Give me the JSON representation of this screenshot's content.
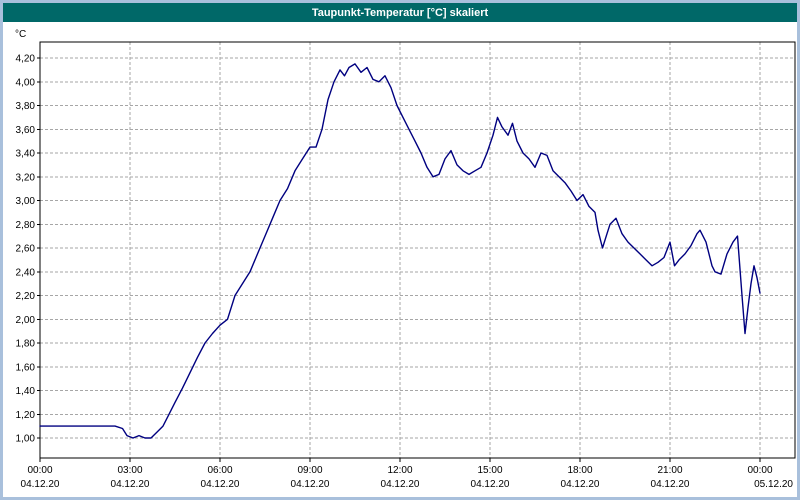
{
  "window": {
    "title": "Taupunkt-Temperatur [°C] skaliert"
  },
  "colors": {
    "title_bar": "#006868",
    "frame": "#A9C0DC",
    "plot_background": "#FFFFFF",
    "plot_border": "#000000",
    "grid": "#A6A6A6",
    "line": "#000080",
    "title_text": "#FFFFFF"
  },
  "chart_data": {
    "type": "line",
    "title": "Taupunkt-Temperatur [°C] skaliert",
    "xlabel": "",
    "ylabel": "°C",
    "ylim": [
      1.0,
      4.2
    ],
    "x_hours_range": [
      0,
      24
    ],
    "grid": true,
    "legend": false,
    "y_ticks": [
      {
        "value": 4.2,
        "label": "4,20"
      },
      {
        "value": 4.0,
        "label": "4,00"
      },
      {
        "value": 3.8,
        "label": "3,80"
      },
      {
        "value": 3.6,
        "label": "3,60"
      },
      {
        "value": 3.4,
        "label": "3,40"
      },
      {
        "value": 3.2,
        "label": "3,20"
      },
      {
        "value": 3.0,
        "label": "3,00"
      },
      {
        "value": 2.8,
        "label": "2,80"
      },
      {
        "value": 2.6,
        "label": "2,60"
      },
      {
        "value": 2.4,
        "label": "2,40"
      },
      {
        "value": 2.2,
        "label": "2,20"
      },
      {
        "value": 2.0,
        "label": "2,00"
      },
      {
        "value": 1.8,
        "label": "1,80"
      },
      {
        "value": 1.6,
        "label": "1,60"
      },
      {
        "value": 1.4,
        "label": "1,40"
      },
      {
        "value": 1.2,
        "label": "1,20"
      },
      {
        "value": 1.0,
        "label": "1,00"
      }
    ],
    "x_ticks": [
      {
        "hour": 0,
        "time": "00:00",
        "date": "04.12.20"
      },
      {
        "hour": 3,
        "time": "03:00",
        "date": "04.12.20"
      },
      {
        "hour": 6,
        "time": "06:00",
        "date": "04.12.20"
      },
      {
        "hour": 9,
        "time": "09:00",
        "date": "04.12.20"
      },
      {
        "hour": 12,
        "time": "12:00",
        "date": "04.12.20"
      },
      {
        "hour": 15,
        "time": "15:00",
        "date": "04.12.20"
      },
      {
        "hour": 18,
        "time": "18:00",
        "date": "04.12.20"
      },
      {
        "hour": 21,
        "time": "21:00",
        "date": "04.12.20"
      },
      {
        "hour": 24,
        "time": "00:00",
        "date": "05.12.20",
        "date_anchor": "end"
      }
    ],
    "series": [
      {
        "name": "Taupunkt-Temperatur [°C]",
        "x": [
          0,
          0.5,
          1,
          1.5,
          2,
          2.5,
          2.75,
          2.9,
          3.1,
          3.3,
          3.5,
          3.7,
          3.9,
          4.1,
          4.3,
          4.5,
          4.75,
          5,
          5.25,
          5.5,
          5.75,
          6,
          6.25,
          6.5,
          6.75,
          7,
          7.25,
          7.5,
          7.75,
          8,
          8.25,
          8.5,
          8.75,
          9,
          9.2,
          9.4,
          9.6,
          9.8,
          10,
          10.15,
          10.3,
          10.5,
          10.7,
          10.9,
          11.1,
          11.3,
          11.5,
          11.7,
          11.9,
          12.1,
          12.3,
          12.5,
          12.7,
          12.9,
          13.1,
          13.3,
          13.5,
          13.7,
          13.9,
          14.1,
          14.3,
          14.5,
          14.7,
          14.9,
          15.1,
          15.25,
          15.4,
          15.6,
          15.75,
          15.9,
          16.1,
          16.3,
          16.5,
          16.7,
          16.9,
          17.1,
          17.3,
          17.5,
          17.7,
          17.9,
          18.1,
          18.3,
          18.5,
          18.6,
          18.75,
          18.9,
          19,
          19.2,
          19.4,
          19.6,
          19.8,
          20,
          20.2,
          20.4,
          20.6,
          20.8,
          21,
          21.15,
          21.3,
          21.5,
          21.7,
          21.9,
          22,
          22.2,
          22.4,
          22.5,
          22.7,
          22.9,
          23.1,
          23.25,
          23.4,
          23.5,
          23.6,
          23.7,
          23.8,
          23.9,
          24
        ],
        "y": [
          1.1,
          1.1,
          1.1,
          1.1,
          1.1,
          1.1,
          1.08,
          1.02,
          1.0,
          1.02,
          1.0,
          1.0,
          1.05,
          1.1,
          1.2,
          1.3,
          1.42,
          1.55,
          1.68,
          1.8,
          1.88,
          1.95,
          2.0,
          2.2,
          2.3,
          2.4,
          2.55,
          2.7,
          2.85,
          3.0,
          3.1,
          3.25,
          3.35,
          3.45,
          3.45,
          3.6,
          3.85,
          4.0,
          4.1,
          4.05,
          4.12,
          4.15,
          4.08,
          4.12,
          4.02,
          4.0,
          4.05,
          3.95,
          3.8,
          3.7,
          3.6,
          3.5,
          3.4,
          3.28,
          3.2,
          3.22,
          3.35,
          3.42,
          3.3,
          3.25,
          3.22,
          3.25,
          3.28,
          3.4,
          3.55,
          3.7,
          3.62,
          3.55,
          3.65,
          3.5,
          3.4,
          3.35,
          3.28,
          3.4,
          3.38,
          3.25,
          3.2,
          3.15,
          3.08,
          3.0,
          3.05,
          2.95,
          2.9,
          2.75,
          2.6,
          2.72,
          2.8,
          2.85,
          2.72,
          2.65,
          2.6,
          2.55,
          2.5,
          2.45,
          2.48,
          2.52,
          2.65,
          2.45,
          2.5,
          2.55,
          2.62,
          2.72,
          2.75,
          2.65,
          2.45,
          2.4,
          2.38,
          2.55,
          2.65,
          2.7,
          2.2,
          1.88,
          2.1,
          2.3,
          2.45,
          2.35,
          2.22
        ]
      }
    ]
  }
}
